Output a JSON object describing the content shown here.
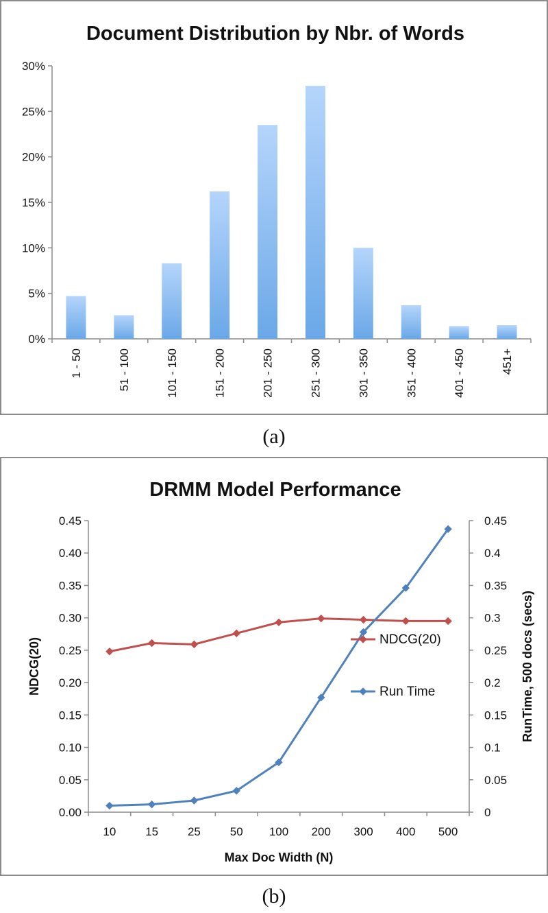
{
  "chart_data": [
    {
      "type": "bar",
      "title": "Document Distribution by Nbr. of Words",
      "xlabel": "",
      "ylabel": "",
      "categories": [
        "1 - 50",
        "51 - 100",
        "101 - 150",
        "151 - 200",
        "201 - 250",
        "251 - 300",
        "301 - 350",
        "351 - 400",
        "401 - 450",
        "451+"
      ],
      "values": [
        4.7,
        2.6,
        8.3,
        16.2,
        23.5,
        27.8,
        10.0,
        3.7,
        1.4,
        1.5
      ],
      "ylim": [
        0,
        30
      ],
      "yticks": [
        0,
        5,
        10,
        15,
        20,
        25,
        30
      ],
      "ytick_labels": [
        "0%",
        "5%",
        "10%",
        "15%",
        "20%",
        "25%",
        "30%"
      ],
      "grid": false,
      "bar_color": "#6aa8e8",
      "caption": "(a)"
    },
    {
      "type": "line",
      "title": "DRMM Model Performance",
      "xlabel": "Max Doc Width (N)",
      "ylabel": "NDCG(20)",
      "y2label": "RunTime, 500 docs (secs)",
      "categories": [
        "10",
        "15",
        "25",
        "50",
        "100",
        "200",
        "300",
        "400",
        "500"
      ],
      "ylim": [
        0,
        0.45
      ],
      "yticks": [
        0,
        0.05,
        0.1,
        0.15,
        0.2,
        0.25,
        0.3,
        0.35,
        0.4,
        0.45
      ],
      "ytick_labels": [
        "0.00",
        "0.05",
        "0.10",
        "0.15",
        "0.20",
        "0.25",
        "0.30",
        "0.35",
        "0.40",
        "0.45"
      ],
      "y2lim": [
        0,
        0.45
      ],
      "y2ticks": [
        0,
        0.05,
        0.1,
        0.15,
        0.2,
        0.25,
        0.3,
        0.35,
        0.4,
        0.45
      ],
      "y2tick_labels": [
        "0",
        "0.05",
        "0.1",
        "0.15",
        "0.2",
        "0.25",
        "0.3",
        "0.35",
        "0.4",
        "0.45"
      ],
      "series": [
        {
          "name": "NDCG(20)",
          "axis": "left",
          "color": "#c0504d",
          "values": [
            0.248,
            0.261,
            0.259,
            0.276,
            0.293,
            0.299,
            0.297,
            0.295,
            0.295
          ]
        },
        {
          "name": "Run Time",
          "axis": "right",
          "color": "#4f81bd",
          "values": [
            0.01,
            0.012,
            0.018,
            0.033,
            0.077,
            0.177,
            0.278,
            0.346,
            0.437
          ]
        }
      ],
      "legend": "right",
      "grid": false,
      "caption": "(b)"
    }
  ]
}
